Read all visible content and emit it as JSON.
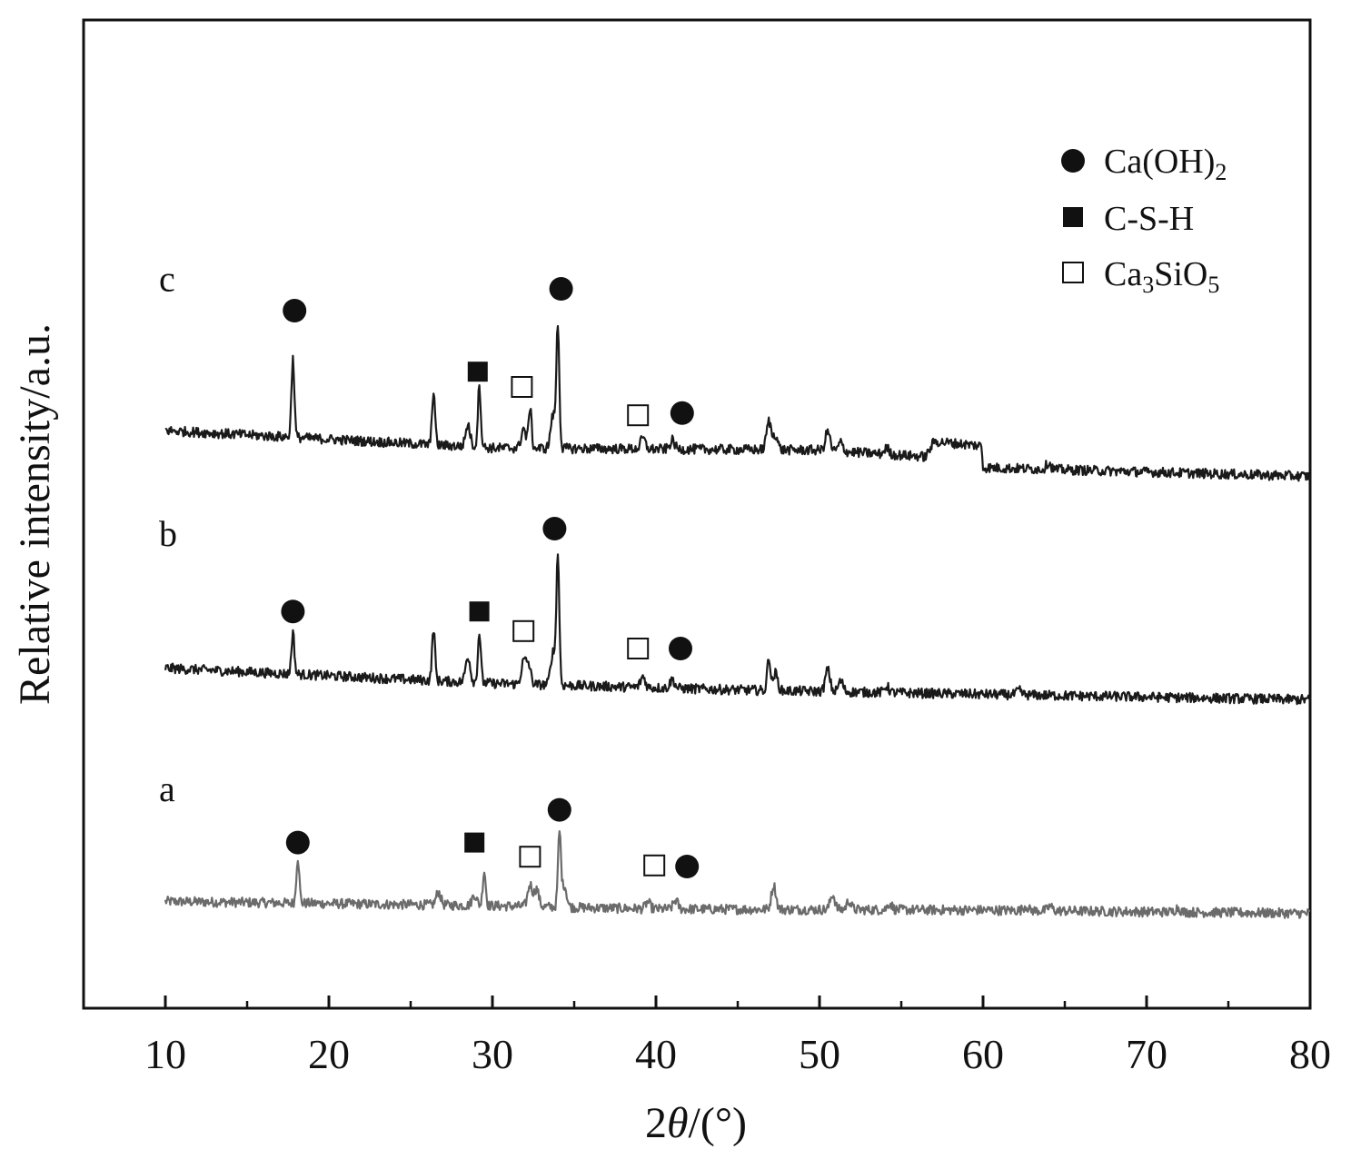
{
  "chart_data": {
    "type": "line",
    "xlabel_parts": [
      "2",
      "θ",
      "/(°)"
    ],
    "ylabel": "Relative intensity/a.u.",
    "xlim": [
      5,
      80
    ],
    "xticks": [
      10,
      20,
      30,
      40,
      50,
      60,
      70,
      80
    ],
    "minor_xticks": [
      15,
      25,
      35,
      45,
      55,
      65,
      75
    ],
    "grid": false,
    "legend_position": "top-right",
    "legend": [
      {
        "symbol": "filled-circle",
        "label": "Ca(OH)",
        "sub": "2"
      },
      {
        "symbol": "filled-square",
        "label": "C-S-H",
        "sub": ""
      },
      {
        "symbol": "open-square",
        "label": "Ca",
        "sub": "3",
        "label2": "SiO",
        "sub2": "5"
      }
    ],
    "series": [
      {
        "name": "a",
        "color": "#6b6b6b",
        "baseline": [
          [
            10,
            4.9
          ],
          [
            30,
            4.7
          ],
          [
            40,
            4.55
          ],
          [
            60,
            4.5
          ],
          [
            80,
            4.35
          ]
        ],
        "peaks": [
          [
            18.1,
            2.1
          ],
          [
            26.7,
            0.6
          ],
          [
            28.9,
            0.5
          ],
          [
            29.5,
            1.6
          ],
          [
            32.3,
            1.0
          ],
          [
            32.7,
            0.8
          ],
          [
            34.1,
            3.4
          ],
          [
            34.4,
            1.0
          ],
          [
            39.5,
            0.3
          ],
          [
            41.2,
            0.4
          ],
          [
            47.2,
            1.1
          ],
          [
            50.8,
            0.7
          ],
          [
            51.8,
            0.4
          ],
          [
            54.3,
            0.3
          ],
          [
            62.6,
            0.2
          ],
          [
            64.1,
            0.2
          ],
          [
            71.9,
            0.2
          ]
        ],
        "markers": [
          {
            "symbol": "filled-circle",
            "x": 18.1,
            "y": 7.6
          },
          {
            "symbol": "filled-square",
            "x": 28.9,
            "y": 7.6
          },
          {
            "symbol": "open-square",
            "x": 32.3,
            "y": 6.95
          },
          {
            "symbol": "filled-circle",
            "x": 34.1,
            "y": 9.1
          },
          {
            "symbol": "open-square",
            "x": 39.9,
            "y": 6.55
          },
          {
            "symbol": "filled-circle",
            "x": 41.9,
            "y": 6.5
          }
        ]
      },
      {
        "name": "b",
        "color": "#1a1a1a",
        "baseline": [
          [
            10,
            15.6
          ],
          [
            30,
            14.9
          ],
          [
            45,
            14.6
          ],
          [
            60,
            14.4
          ],
          [
            80,
            14.15
          ]
        ],
        "peaks": [
          [
            17.8,
            1.9
          ],
          [
            26.4,
            2.4
          ],
          [
            28.5,
            1.2
          ],
          [
            29.2,
            2.3
          ],
          [
            31.9,
            1.0
          ],
          [
            32.2,
            0.9
          ],
          [
            33.7,
            1.5
          ],
          [
            34.0,
            5.9
          ],
          [
            39.2,
            0.5
          ],
          [
            41.0,
            0.4
          ],
          [
            46.9,
            1.6
          ],
          [
            47.3,
            0.8
          ],
          [
            50.5,
            1.0
          ],
          [
            51.3,
            0.5
          ],
          [
            54.1,
            0.3
          ],
          [
            62.2,
            0.2
          ]
        ],
        "markers": [
          {
            "symbol": "filled-circle",
            "x": 17.8,
            "y": 18.2
          },
          {
            "symbol": "filled-square",
            "x": 29.2,
            "y": 18.2
          },
          {
            "symbol": "open-square",
            "x": 31.9,
            "y": 17.3
          },
          {
            "symbol": "filled-circle",
            "x": 33.8,
            "y": 22.0
          },
          {
            "symbol": "open-square",
            "x": 38.9,
            "y": 16.5
          },
          {
            "symbol": "filled-circle",
            "x": 41.5,
            "y": 16.5
          }
        ]
      },
      {
        "name": "c",
        "color": "#1a1a1a",
        "baseline": [
          [
            10,
            26.5
          ],
          [
            30,
            25.7
          ],
          [
            50,
            25.6
          ],
          [
            56.5,
            25.3
          ],
          [
            57,
            26.0
          ],
          [
            59.9,
            25.8
          ],
          [
            60,
            24.8
          ],
          [
            80,
            24.4
          ]
        ],
        "peaks": [
          [
            17.8,
            3.6
          ],
          [
            26.4,
            2.5
          ],
          [
            28.5,
            1.0
          ],
          [
            29.2,
            2.8
          ],
          [
            31.9,
            0.9
          ],
          [
            32.3,
            1.9
          ],
          [
            33.7,
            1.5
          ],
          [
            34.0,
            5.6
          ],
          [
            39.2,
            0.5
          ],
          [
            41.0,
            0.4
          ],
          [
            46.9,
            1.3
          ],
          [
            47.3,
            0.7
          ],
          [
            50.5,
            0.9
          ],
          [
            51.3,
            0.4
          ],
          [
            54.1,
            0.3
          ],
          [
            64.0,
            0.3
          ]
        ],
        "markers": [
          {
            "symbol": "filled-circle",
            "x": 17.9,
            "y": 32.0
          },
          {
            "symbol": "filled-square",
            "x": 29.1,
            "y": 29.2
          },
          {
            "symbol": "open-square",
            "x": 31.8,
            "y": 28.5
          },
          {
            "symbol": "filled-circle",
            "x": 34.2,
            "y": 33.0
          },
          {
            "symbol": "open-square",
            "x": 38.9,
            "y": 27.2
          },
          {
            "symbol": "filled-circle",
            "x": 41.6,
            "y": 27.3
          }
        ]
      }
    ]
  }
}
